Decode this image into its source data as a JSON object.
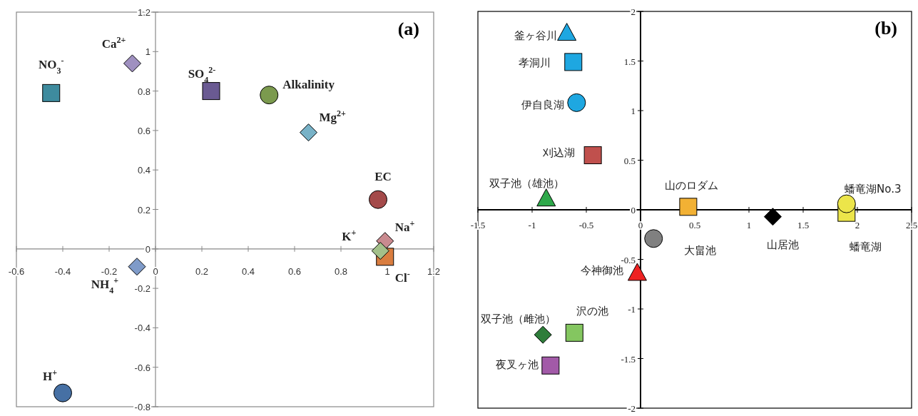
{
  "chart_data": [
    {
      "type": "scatter",
      "title": "(a)",
      "xlim": [
        -0.6,
        1.2
      ],
      "ylim": [
        -0.8,
        1.2
      ],
      "xticks": [
        -0.6,
        -0.4,
        -0.2,
        0,
        0.2,
        0.4,
        0.6,
        0.8,
        1,
        1.2
      ],
      "yticks": [
        -0.8,
        -0.6,
        -0.4,
        -0.2,
        0,
        0.2,
        0.4,
        0.6,
        0.8,
        1,
        1.2
      ],
      "grid": false,
      "legend": false,
      "series": [
        {
          "name": "NO$_{3}$$^{-}$",
          "color": "#3e8b9e",
          "marker": "square",
          "x": [
            -0.45
          ],
          "values": [
            0.79
          ]
        },
        {
          "name": "Ca$^{2+}$",
          "color": "#9f90c0",
          "marker": "diamond",
          "x": [
            -0.1
          ],
          "values": [
            0.94
          ]
        },
        {
          "name": "SO$_{4}$$^{2-}$",
          "color": "#6a5a92",
          "marker": "square",
          "x": [
            0.24
          ],
          "values": [
            0.8
          ]
        },
        {
          "name": "Alkalinity",
          "color": "#7b9a4e",
          "marker": "circle",
          "x": [
            0.49
          ],
          "values": [
            0.78
          ]
        },
        {
          "name": "Mg$^{2+}$",
          "color": "#78b2c7",
          "marker": "diamond",
          "x": [
            0.66
          ],
          "values": [
            0.59
          ]
        },
        {
          "name": "EC",
          "color": "#a44a4a",
          "marker": "circle",
          "x": [
            0.96
          ],
          "values": [
            0.25
          ]
        },
        {
          "name": "Cl$^{-}$",
          "color": "#d97d3f",
          "marker": "square",
          "x": [
            0.99
          ],
          "values": [
            -0.04
          ]
        },
        {
          "name": "Na$^{+}$",
          "color": "#c98a8f",
          "marker": "diamond",
          "x": [
            0.99
          ],
          "values": [
            0.04
          ]
        },
        {
          "name": "K$^{+}$",
          "color": "#a3c08a",
          "marker": "diamond",
          "x": [
            0.97
          ],
          "values": [
            -0.01
          ]
        },
        {
          "name": "NH$_{4}$$^{+}$",
          "color": "#7f9bc9",
          "marker": "diamond",
          "x": [
            -0.08
          ],
          "values": [
            -0.09
          ]
        },
        {
          "name": "H$^{+}$",
          "color": "#4670a4",
          "marker": "circle",
          "x": [
            -0.4
          ],
          "values": [
            -0.73
          ]
        }
      ]
    },
    {
      "type": "scatter",
      "title": "(b)",
      "xlim": [
        -1.5,
        2.5
      ],
      "ylim": [
        -2,
        2
      ],
      "xticks": [
        -1.5,
        -1,
        -0.5,
        0,
        0.5,
        1,
        1.5,
        2,
        2.5
      ],
      "yticks": [
        -2,
        -1.5,
        -1,
        -0.5,
        0,
        0.5,
        1,
        1.5,
        2
      ],
      "grid": false,
      "legend": false,
      "series": [
        {
          "name": "釜ヶ谷川",
          "color": "#1ea7e1",
          "marker": "triangle",
          "x": [
            -0.68
          ],
          "values": [
            1.78
          ]
        },
        {
          "name": "孝洞川",
          "color": "#1ea7e1",
          "marker": "square",
          "x": [
            -0.62
          ],
          "values": [
            1.49
          ]
        },
        {
          "name": "伊自良湖",
          "color": "#1ea7e1",
          "marker": "circle",
          "x": [
            -0.59
          ],
          "values": [
            1.08
          ]
        },
        {
          "name": "刈込湖",
          "color": "#c0504d",
          "marker": "square",
          "x": [
            -0.44
          ],
          "values": [
            0.55
          ]
        },
        {
          "name": "双子池（雄池）",
          "color": "#2ea84a",
          "marker": "triangle",
          "x": [
            -0.87
          ],
          "values": [
            0.11
          ]
        },
        {
          "name": "山のロダム",
          "color": "#f2b134",
          "marker": "square",
          "x": [
            0.44
          ],
          "values": [
            0.03
          ]
        },
        {
          "name": "蟠竜湖",
          "color": "#ece54a",
          "marker": "square",
          "x": [
            1.9
          ],
          "values": [
            -0.03
          ]
        },
        {
          "name": "蟠竜湖No.3",
          "color": "#ece54a",
          "marker": "circle",
          "x": [
            1.9
          ],
          "values": [
            0.06
          ]
        },
        {
          "name": "山居池",
          "color": "#000000",
          "marker": "diamond",
          "x": [
            1.22
          ],
          "values": [
            -0.07
          ]
        },
        {
          "name": "大畠池",
          "color": "#808080",
          "marker": "circle",
          "x": [
            0.12
          ],
          "values": [
            -0.29
          ]
        },
        {
          "name": "今神御池",
          "color": "#ee2222",
          "marker": "triangle",
          "x": [
            -0.03
          ],
          "values": [
            -0.64
          ]
        },
        {
          "name": "双子池（雌池）",
          "color": "#2e7d3a",
          "marker": "diamond",
          "x": [
            -0.9
          ],
          "values": [
            -1.26
          ]
        },
        {
          "name": "沢の池",
          "color": "#84c660",
          "marker": "square",
          "x": [
            -0.61
          ],
          "values": [
            -1.24
          ]
        },
        {
          "name": "夜叉ヶ池",
          "color": "#a25aa8",
          "marker": "square",
          "x": [
            -0.83
          ],
          "values": [
            -1.57
          ]
        }
      ]
    }
  ]
}
